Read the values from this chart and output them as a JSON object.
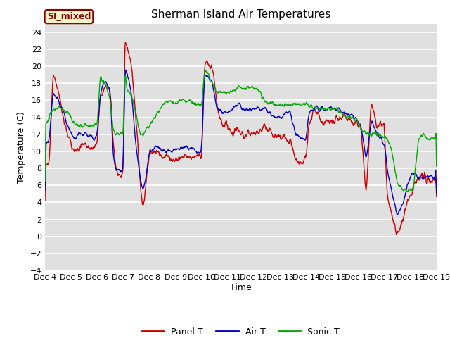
{
  "title": "Sherman Island Air Temperatures",
  "xlabel": "Time",
  "ylabel": "Temperature (C)",
  "ylim": [
    -4,
    25
  ],
  "yticks": [
    -4,
    -2,
    0,
    2,
    4,
    6,
    8,
    10,
    12,
    14,
    16,
    18,
    20,
    22,
    24
  ],
  "xtick_labels": [
    "Dec 4",
    "Dec 5",
    "Dec 6",
    "Dec 7",
    "Dec 8",
    "Dec 9",
    "Dec 10",
    "Dec 11",
    "Dec 12",
    "Dec 13",
    "Dec 14",
    "Dec 15",
    "Dec 16",
    "Dec 17",
    "Dec 18",
    "Dec 19"
  ],
  "legend_labels": [
    "Panel T",
    "Air T",
    "Sonic T"
  ],
  "line_colors": [
    "#cc0000",
    "#0000cc",
    "#00aa00"
  ],
  "annotation_text": "SI_mixed",
  "annotation_color": "#8b0000",
  "annotation_bg": "#f5f5c8",
  "fig_bg_color": "#ffffff",
  "plot_bg_color": "#e0e0e0",
  "grid_color": "#ffffff",
  "title_fontsize": 11,
  "axis_label_fontsize": 9,
  "tick_fontsize": 8,
  "legend_fontsize": 9
}
